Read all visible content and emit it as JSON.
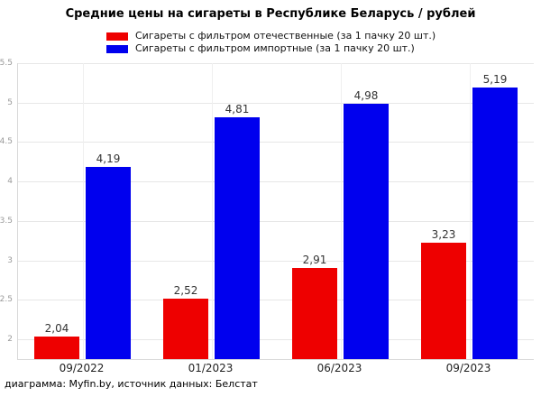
{
  "title": "Средние цены на сигареты в Республике Беларусь / рублей",
  "footer": "диаграмма: Myfin.by, источник данных: Белстат",
  "colors": {
    "domestic": "#ee0000",
    "imported": "#0000ee",
    "grid": "#e7e7e7",
    "axis_label": "#9a9a9a"
  },
  "chart_data": {
    "type": "bar",
    "title": "Средние цены на сигареты в Республике Беларусь / рублей",
    "categories": [
      "09/2022",
      "01/2023",
      "06/2023",
      "09/2023"
    ],
    "series": [
      {
        "name": "Сигареты с фильтром отечественные (за 1 пачку 20 шт.)",
        "color": "#ee0000",
        "values": [
          2.04,
          2.52,
          2.91,
          3.23
        ],
        "value_labels": [
          "2,04",
          "2,52",
          "2,91",
          "3,23"
        ]
      },
      {
        "name": "Сигареты с фильтром импортные (за 1 пачку 20 шт.)",
        "color": "#0000ee",
        "values": [
          4.19,
          4.81,
          4.98,
          5.19
        ],
        "value_labels": [
          "4,19",
          "4,81",
          "4,98",
          "5,19"
        ]
      }
    ],
    "xlabel": "",
    "ylabel": "",
    "ylim": [
      1.75,
      5.5
    ],
    "yticks": [
      2,
      2.5,
      3,
      3.5,
      4,
      4.5,
      5,
      5.5
    ],
    "ytick_labels": [
      "2",
      "2.5",
      "3",
      "3.5",
      "4",
      "4.5",
      "5",
      "5.5"
    ],
    "grid": true,
    "legend_position": "top"
  }
}
